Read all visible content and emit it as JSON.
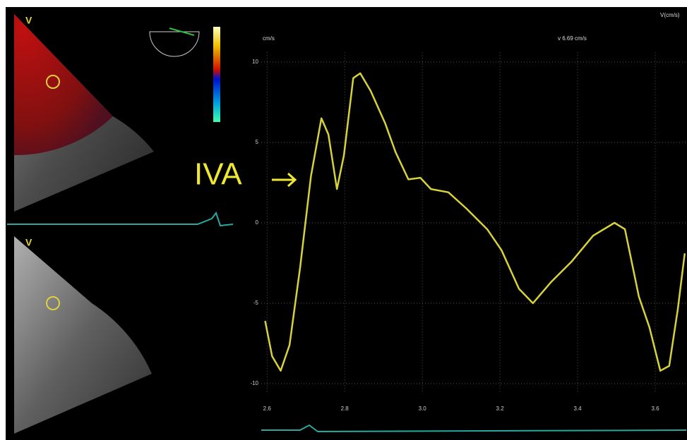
{
  "chart_data": {
    "type": "line",
    "y_unit": "cm/s",
    "readout": "v 6.69 cm/s",
    "corner_label": "V(cm/s)",
    "annotation": "IVA",
    "x": [
      2.595,
      2.613,
      2.635,
      2.658,
      2.685,
      2.713,
      2.74,
      2.758,
      2.78,
      2.798,
      2.822,
      2.84,
      2.867,
      2.904,
      2.931,
      2.964,
      2.995,
      3.022,
      3.067,
      3.113,
      3.167,
      3.204,
      3.249,
      3.285,
      3.331,
      3.385,
      3.44,
      3.495,
      3.522,
      3.558,
      3.585,
      3.613,
      3.636,
      3.658,
      3.676
    ],
    "values": [
      -6.1,
      -8.3,
      -9.2,
      -7.6,
      -2.8,
      2.9,
      6.5,
      5.5,
      2.1,
      4.2,
      9.0,
      9.3,
      8.2,
      6.2,
      4.4,
      2.7,
      2.8,
      2.1,
      1.9,
      0.9,
      -0.4,
      -1.7,
      -4.1,
      -5.0,
      -3.7,
      -2.4,
      -0.8,
      0.0,
      -0.4,
      -4.6,
      -6.5,
      -9.2,
      -8.9,
      -5.4,
      -1.9
    ],
    "color": "#d8d23a",
    "xlim": [
      2.585,
      3.68
    ],
    "ylim": [
      -10.5,
      10.6
    ],
    "xticks": [
      2.6,
      2.8,
      {
        "value": 3.0,
        "label": "3.0"
      },
      3.2,
      3.4,
      3.6
    ],
    "yticks": [
      10,
      5,
      0,
      -5,
      -10
    ],
    "grid": true
  },
  "images": {
    "labels": [
      "V",
      "V"
    ]
  }
}
